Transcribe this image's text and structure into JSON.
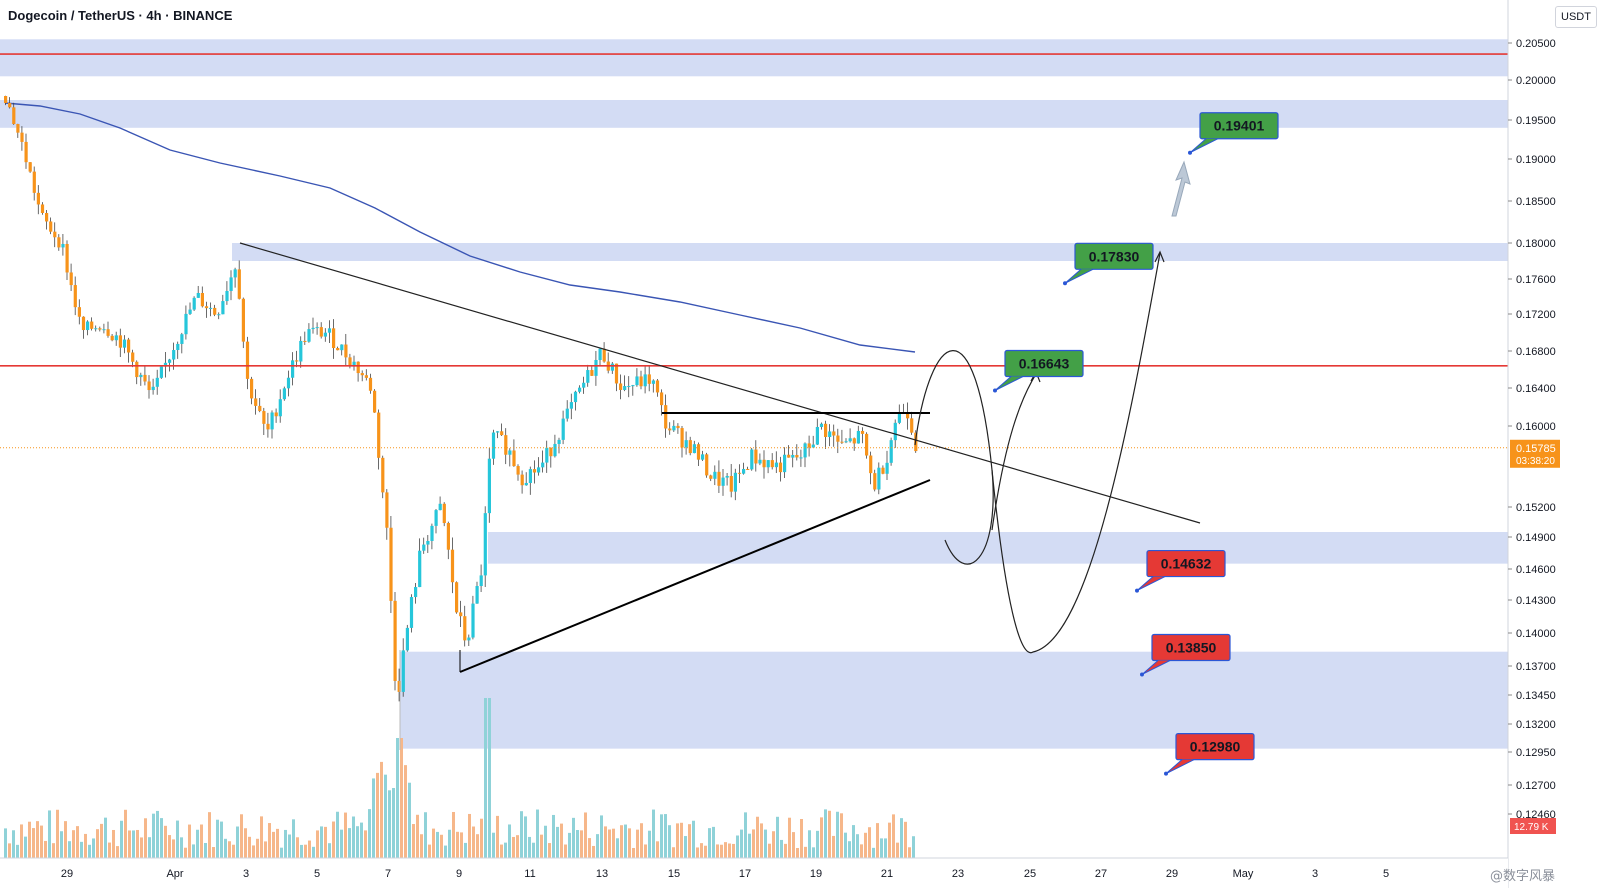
{
  "header": {
    "title": "Dogecoin / TetherUS · 4h · BINANCE",
    "currency": "USDT"
  },
  "watermark": "@数字风暴",
  "chart_data": {
    "type": "candlestick",
    "symbol": "Dogecoin / TetherUS",
    "interval": "4h",
    "exchange": "BINANCE",
    "yaxis": {
      "ticks": [
        0.205,
        0.2,
        0.195,
        0.19,
        0.185,
        0.18,
        0.176,
        0.172,
        0.168,
        0.164,
        0.16,
        0.152,
        0.149,
        0.146,
        0.143,
        0.14,
        0.137,
        0.1345,
        0.132,
        0.1295,
        0.127,
        0.1246
      ],
      "tick_labels": [
        "0.20500",
        "0.20000",
        "0.19500",
        "0.19000",
        "0.18500",
        "0.18000",
        "0.17600",
        "0.17200",
        "0.16800",
        "0.16400",
        "0.16000",
        "0.15200",
        "0.14900",
        "0.14600",
        "0.14300",
        "0.14000",
        "0.13700",
        "0.13450",
        "0.13200",
        "0.12950",
        "0.12700",
        "0.12460"
      ]
    },
    "xaxis": {
      "tick_labels": [
        "29",
        "Apr",
        "3",
        "5",
        "7",
        "9",
        "11",
        "13",
        "15",
        "17",
        "19",
        "21",
        "23",
        "25",
        "27",
        "29",
        "May",
        "3",
        "5"
      ]
    },
    "current_price": {
      "value": 0.15785,
      "label": "0.15785",
      "countdown": "03:38:20",
      "color": "#f7931a"
    },
    "extra_price_tag": {
      "label": "12.79 K",
      "color": "#f05350"
    },
    "zones": [
      {
        "low": 0.2005,
        "high": 0.2055
      },
      {
        "low": 0.194,
        "high": 0.1975
      },
      {
        "low": 0.178,
        "high": 0.18
      },
      {
        "low": 0.1465,
        "high": 0.1495
      },
      {
        "low": 0.1298,
        "high": 0.1383
      }
    ],
    "horizontal_lines": [
      {
        "price": 0.2035,
        "color": "#e53935"
      },
      {
        "price": 0.1664,
        "color": "#e53935"
      }
    ],
    "target_labels": [
      {
        "text": "0.19401",
        "price": 0.19401,
        "color": "#43a047"
      },
      {
        "text": "0.17830",
        "price": 0.1783,
        "color": "#43a047"
      },
      {
        "text": "0.16643",
        "price": 0.16643,
        "color": "#43a047"
      },
      {
        "text": "0.14632",
        "price": 0.14632,
        "color": "#e53935"
      },
      {
        "text": "0.13850",
        "price": 0.1385,
        "color": "#e53935"
      },
      {
        "text": "0.12980",
        "price": 0.1298,
        "color": "#e53935"
      }
    ],
    "moving_average_color": "#3a55b4",
    "up_color": "#26c6da",
    "down_color": "#f7931a"
  }
}
